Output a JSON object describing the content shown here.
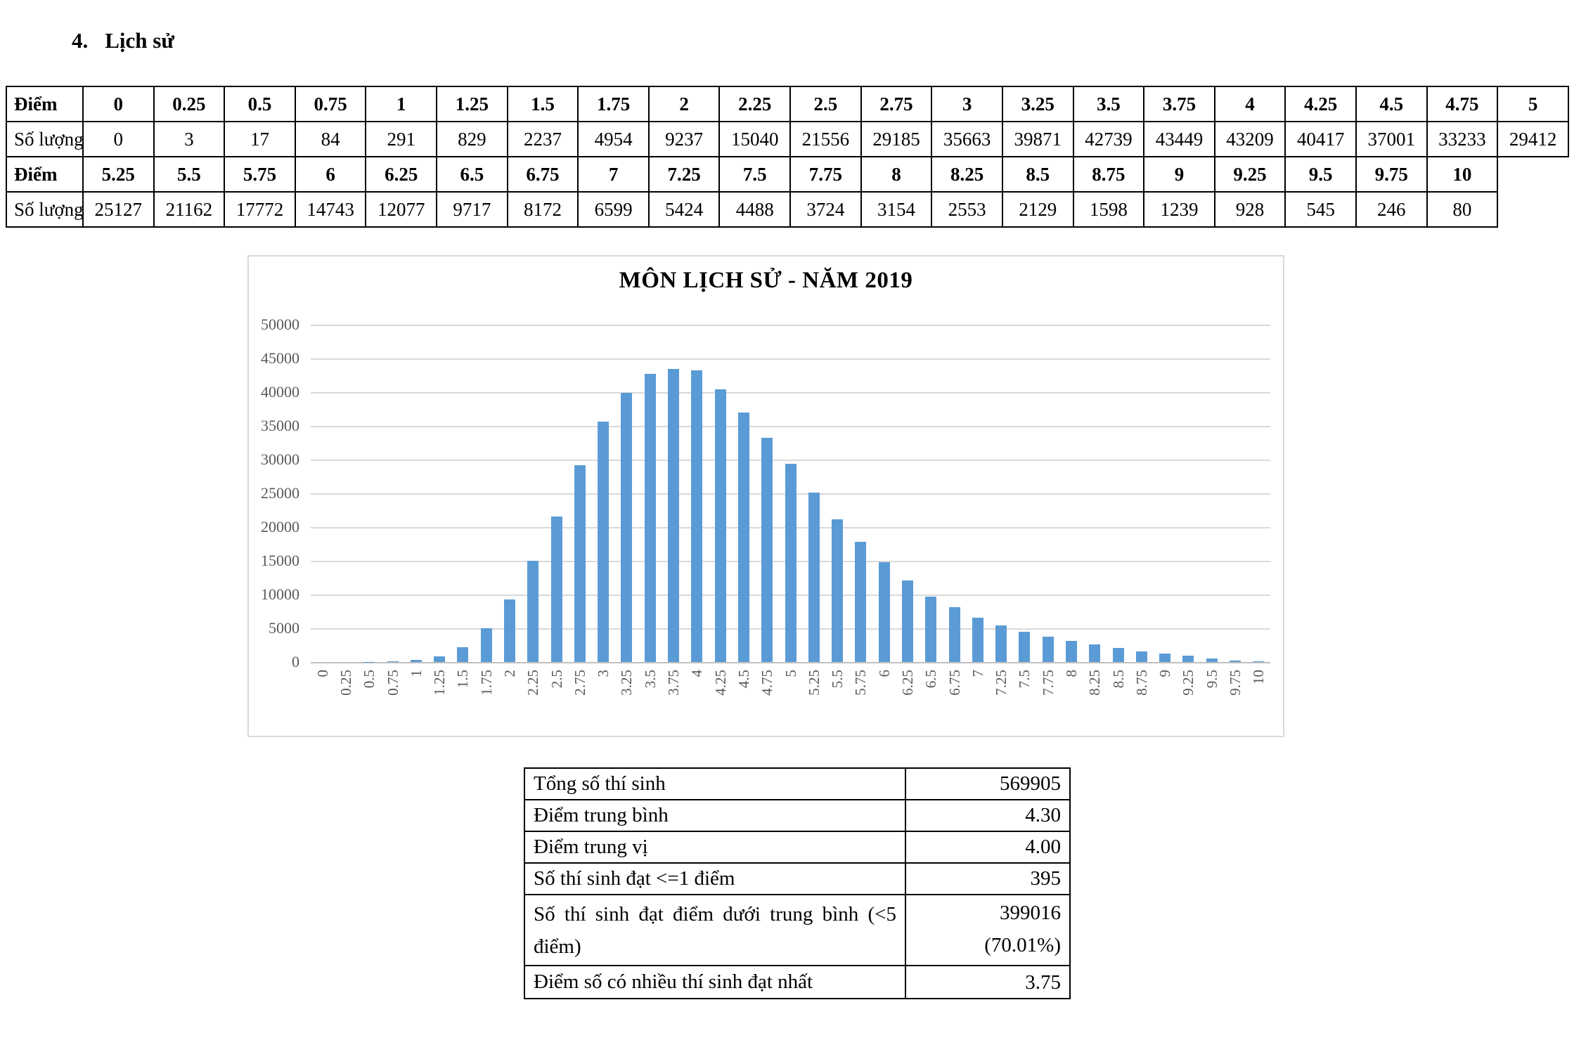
{
  "heading": {
    "number": "4.",
    "text": "Lịch sử"
  },
  "score_table": {
    "row_label_score": "Điểm",
    "row_label_count": "Số lượng",
    "scores_low": [
      "0",
      "0.25",
      "0.5",
      "0.75",
      "1",
      "1.25",
      "1.5",
      "1.75",
      "2",
      "2.25",
      "2.5",
      "2.75",
      "3",
      "3.25",
      "3.5",
      "3.75",
      "4",
      "4.25",
      "4.5",
      "4.75",
      "5"
    ],
    "counts_low": [
      "0",
      "3",
      "17",
      "84",
      "291",
      "829",
      "2237",
      "4954",
      "9237",
      "15040",
      "21556",
      "29185",
      "35663",
      "39871",
      "42739",
      "43449",
      "43209",
      "40417",
      "37001",
      "33233",
      "29412"
    ],
    "scores_high": [
      "5.25",
      "5.5",
      "5.75",
      "6",
      "6.25",
      "6.5",
      "6.75",
      "7",
      "7.25",
      "7.5",
      "7.75",
      "8",
      "8.25",
      "8.5",
      "8.75",
      "9",
      "9.25",
      "9.5",
      "9.75",
      "10"
    ],
    "counts_high": [
      "25127",
      "21162",
      "17772",
      "14743",
      "12077",
      "9717",
      "8172",
      "6599",
      "5424",
      "4488",
      "3724",
      "3154",
      "2553",
      "2129",
      "1598",
      "1239",
      "928",
      "545",
      "246",
      "80"
    ]
  },
  "chart_data": {
    "type": "bar",
    "title": "MÔN LỊCH SỬ - NĂM 2019",
    "categories": [
      "0",
      "0.25",
      "0.5",
      "0.75",
      "1",
      "1.25",
      "1.5",
      "1.75",
      "2",
      "2.25",
      "2.5",
      "2.75",
      "3",
      "3.25",
      "3.5",
      "3.75",
      "4",
      "4.25",
      "4.5",
      "4.75",
      "5",
      "5.25",
      "5.5",
      "5.75",
      "6",
      "6.25",
      "6.5",
      "6.75",
      "7",
      "7.25",
      "7.5",
      "7.75",
      "8",
      "8.25",
      "8.5",
      "8.75",
      "9",
      "9.25",
      "9.5",
      "9.75",
      "10"
    ],
    "values": [
      0,
      3,
      17,
      84,
      291,
      829,
      2237,
      4954,
      9237,
      15040,
      21556,
      29185,
      35663,
      39871,
      42739,
      43449,
      43209,
      40417,
      37001,
      33233,
      29412,
      25127,
      21162,
      17772,
      14743,
      12077,
      9717,
      8172,
      6599,
      5424,
      4488,
      3724,
      3154,
      2553,
      2129,
      1598,
      1239,
      928,
      545,
      246,
      80
    ],
    "xlabel": "",
    "ylabel": "",
    "ylim": [
      0,
      50000
    ],
    "ytick_step": 5000,
    "grid": true,
    "legend_position": "none",
    "bar_color": "#5b9bd5",
    "gridline_color": "#d9d9d9",
    "axis_text_color": "#595959"
  },
  "summary_table": {
    "rows": [
      {
        "label": "Tổng số thí sinh",
        "value": "569905"
      },
      {
        "label": "Điểm trung bình",
        "value": "4.30"
      },
      {
        "label": "Điểm trung vị",
        "value": "4.00"
      },
      {
        "label": "Số thí sinh đạt <=1 điểm",
        "value": "395"
      },
      {
        "label": "Số thí sinh đạt điểm dưới trung bình (<5 điểm)",
        "value": "399016",
        "value2": "(70.01%)"
      },
      {
        "label": "Điểm số có nhiều thí sinh đạt nhất",
        "value": "3.75"
      }
    ]
  }
}
